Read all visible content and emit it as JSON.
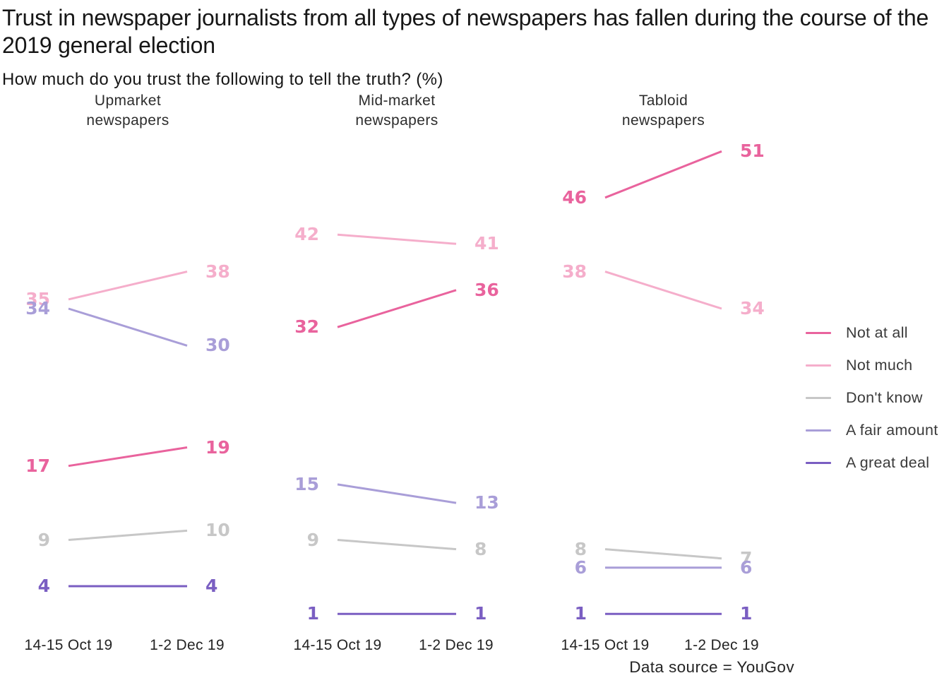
{
  "chart_data": {
    "type": "line",
    "subtype": "slopegraph",
    "title": "Trust in newspaper journalists from all types of newspapers has fallen during the course of the 2019 general election",
    "subtitle": "How much do you trust the following to tell the truth? (%)",
    "source": "Data source = YouGov",
    "x": [
      "14-15 Oct 19",
      "1-2 Dec 19"
    ],
    "ylim": [
      0,
      55
    ],
    "grid": false,
    "legend_position": "right",
    "legend": [
      {
        "label": "Not at all",
        "color": "#e9639d"
      },
      {
        "label": "Not much",
        "color": "#f5aecb"
      },
      {
        "label": "Don't know",
        "color": "#c7c7c7"
      },
      {
        "label": "A fair amount",
        "color": "#a99ed8"
      },
      {
        "label": "A great deal",
        "color": "#7a5ec2"
      }
    ],
    "panels": [
      {
        "title_lines": [
          "Upmarket",
          "newspapers"
        ],
        "series": [
          {
            "name": "Not at all",
            "values": [
              17,
              19
            ]
          },
          {
            "name": "Not much",
            "values": [
              35,
              38
            ]
          },
          {
            "name": "Don't know",
            "values": [
              9,
              10
            ]
          },
          {
            "name": "A fair amount",
            "values": [
              34,
              30
            ]
          },
          {
            "name": "A great deal",
            "values": [
              4,
              4
            ]
          }
        ]
      },
      {
        "title_lines": [
          "Mid-market",
          "newspapers"
        ],
        "series": [
          {
            "name": "Not at all",
            "values": [
              32,
              36
            ]
          },
          {
            "name": "Not much",
            "values": [
              42,
              41
            ]
          },
          {
            "name": "Don't know",
            "values": [
              9,
              8
            ]
          },
          {
            "name": "A fair amount",
            "values": [
              15,
              13
            ]
          },
          {
            "name": "A great deal",
            "values": [
              1,
              1
            ]
          }
        ]
      },
      {
        "title_lines": [
          "Tabloid",
          "newspapers"
        ],
        "series": [
          {
            "name": "Not at all",
            "values": [
              46,
              51
            ]
          },
          {
            "name": "Not much",
            "values": [
              38,
              34
            ]
          },
          {
            "name": "Don't know",
            "values": [
              8,
              7
            ]
          },
          {
            "name": "A fair amount",
            "values": [
              6,
              6
            ]
          },
          {
            "name": "A great deal",
            "values": [
              1,
              1
            ]
          }
        ]
      }
    ]
  }
}
